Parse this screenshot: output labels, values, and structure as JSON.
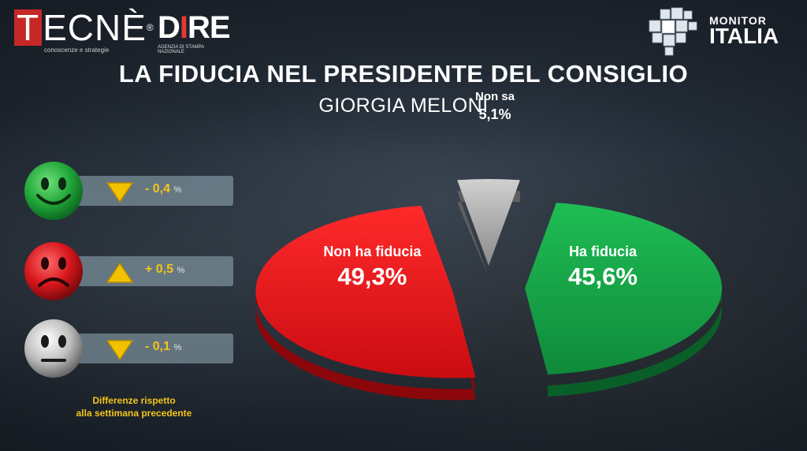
{
  "header": {
    "tecne_logo": {
      "text": "TECNÈ",
      "tagline": "conoscenze e strategie"
    },
    "dire_logo": {
      "text": "DIRE",
      "tagline": "AGENZIA DI STAMPA NAZIONALE"
    },
    "monitor_logo": {
      "line1": "MONITOR",
      "line2": "ITALIA"
    }
  },
  "title": "LA FIDUCIA NEL PRESIDENTE DEL CONSIGLIO",
  "subtitle": "GIORGIA MELONI",
  "differences": [
    {
      "face": "green-smiley",
      "direction": "down",
      "value": "- 0,4",
      "unit": "%"
    },
    {
      "face": "red-frowny",
      "direction": "up",
      "value": "+ 0,5",
      "unit": "%"
    },
    {
      "face": "gray-neutral",
      "direction": "down",
      "value": "- 0,1",
      "unit": "%"
    }
  ],
  "note": {
    "line1": "Differenze rispetto",
    "line2": "alla settimana precedente"
  },
  "chart_data": {
    "type": "pie",
    "slices": [
      {
        "label": "Non ha fiducia",
        "value": 49.3,
        "value_label": "49,3%",
        "color": "#e8141a"
      },
      {
        "label": "Non sa",
        "value": 5.1,
        "value_label": "5,1%",
        "color": "#a9a9a9"
      },
      {
        "label": "Ha fiducia",
        "value": 45.6,
        "value_label": "45,6%",
        "color": "#14a146"
      }
    ]
  },
  "colors": {
    "green": "#14a146",
    "red": "#e8141a",
    "gray": "#a9a9a9",
    "accent_yellow": "#f5c518"
  }
}
